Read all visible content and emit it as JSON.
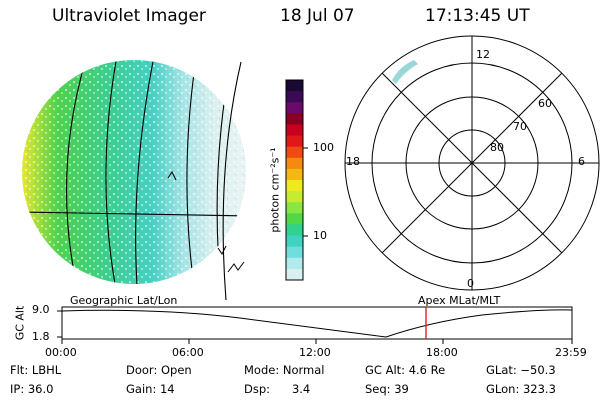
{
  "header": {
    "instrument": "Ultraviolet Imager",
    "date": "18 Jul 07",
    "time": "17:13:45 UT"
  },
  "colorbar": {
    "unit_label": "photon cm⁻²s⁻¹",
    "ticks": [
      "100",
      "10"
    ],
    "colors": [
      "#1a0a33",
      "#3a0a55",
      "#6a0a6a",
      "#8a0020",
      "#c80020",
      "#e01818",
      "#f04a10",
      "#f58a10",
      "#f5b810",
      "#eeea20",
      "#c6ec30",
      "#8ae640",
      "#50d848",
      "#30d290",
      "#40d4c0",
      "#70dedc",
      "#b0eaea",
      "#d8f0f0"
    ]
  },
  "polar_plot": {
    "mlt_labels": {
      "top": "12",
      "left": "18",
      "right": "6",
      "bottom": "0"
    },
    "lat_labels": [
      "60",
      "70",
      "80"
    ]
  },
  "timeline": {
    "ylabel": "GC Alt",
    "ytick_top": "9.0",
    "ytick_bottom": "1.8",
    "left_title": "Geographic Lat/Lon",
    "right_title": "Apex  MLat/MLT",
    "xticks": [
      "00:00",
      "06:00",
      "12:00",
      "18:00",
      "23:59"
    ],
    "marker_color": "#e02020"
  },
  "footer": {
    "flt": "Flt: LBHL",
    "ip": "IP: 36.0",
    "door": "Door: Open",
    "gain": "Gain: 14",
    "mode": "Mode: Normal",
    "dsp": "Dsp:      3.4",
    "gc_alt": "GC Alt: 4.6 Re",
    "seq": "Seq: 39",
    "glat": "GLat: −50.3",
    "glon": "GLon: 323.3"
  }
}
